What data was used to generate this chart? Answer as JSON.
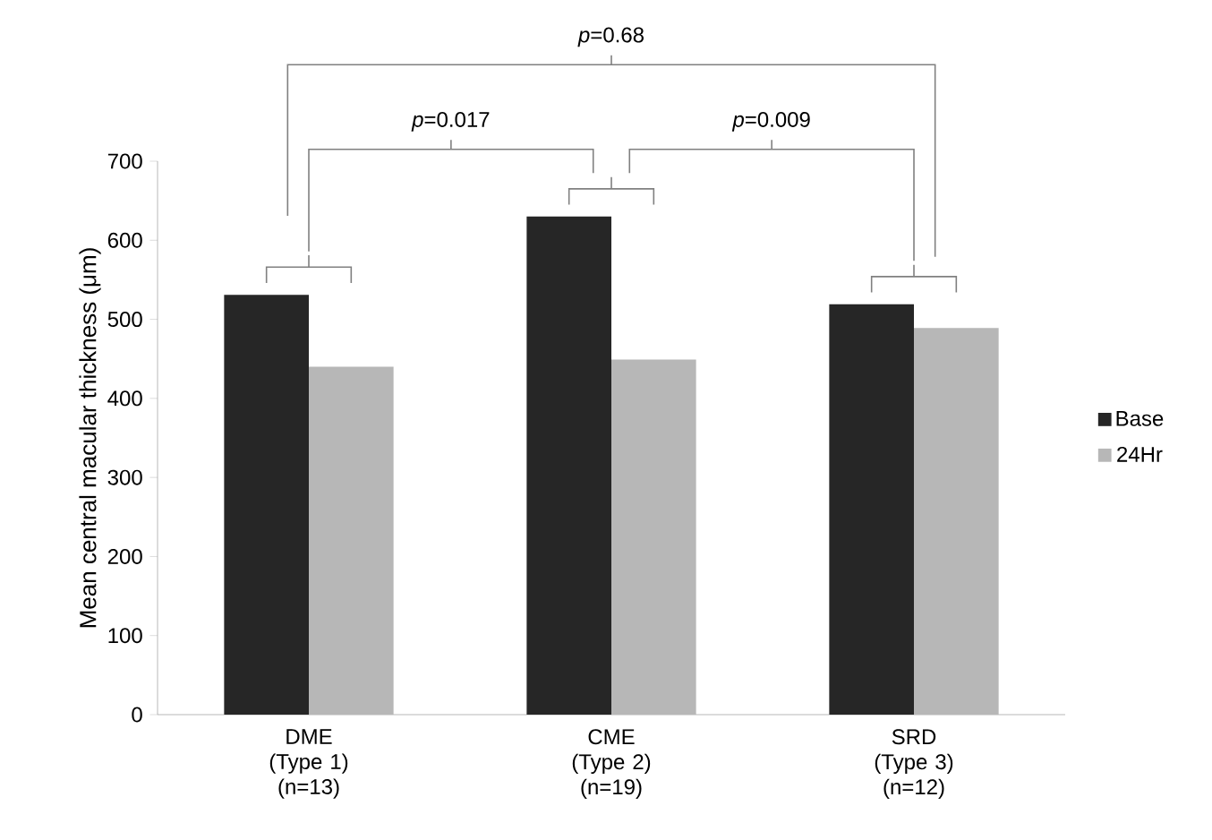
{
  "chart_data": {
    "type": "bar",
    "ylabel": "Mean central macular thickness (μm)",
    "categories": [
      "DME (Type 1) (n=13)",
      "CME (Type 2) (n=19)",
      "SRD (Type 3) (n=12)"
    ],
    "series": [
      {
        "name": "Base",
        "color": "#262626",
        "values": [
          531,
          630,
          519
        ]
      },
      {
        "name": "24Hr",
        "color": "#b7b7b7",
        "values": [
          440,
          449,
          489
        ]
      }
    ],
    "ylim": [
      0,
      700
    ],
    "yticks": [
      0,
      100,
      200,
      300,
      400,
      500,
      600,
      700
    ],
    "legend": "right",
    "annotations": [
      "*p*=0.68",
      "*p*=0.017",
      "*p*=0.009"
    ]
  }
}
